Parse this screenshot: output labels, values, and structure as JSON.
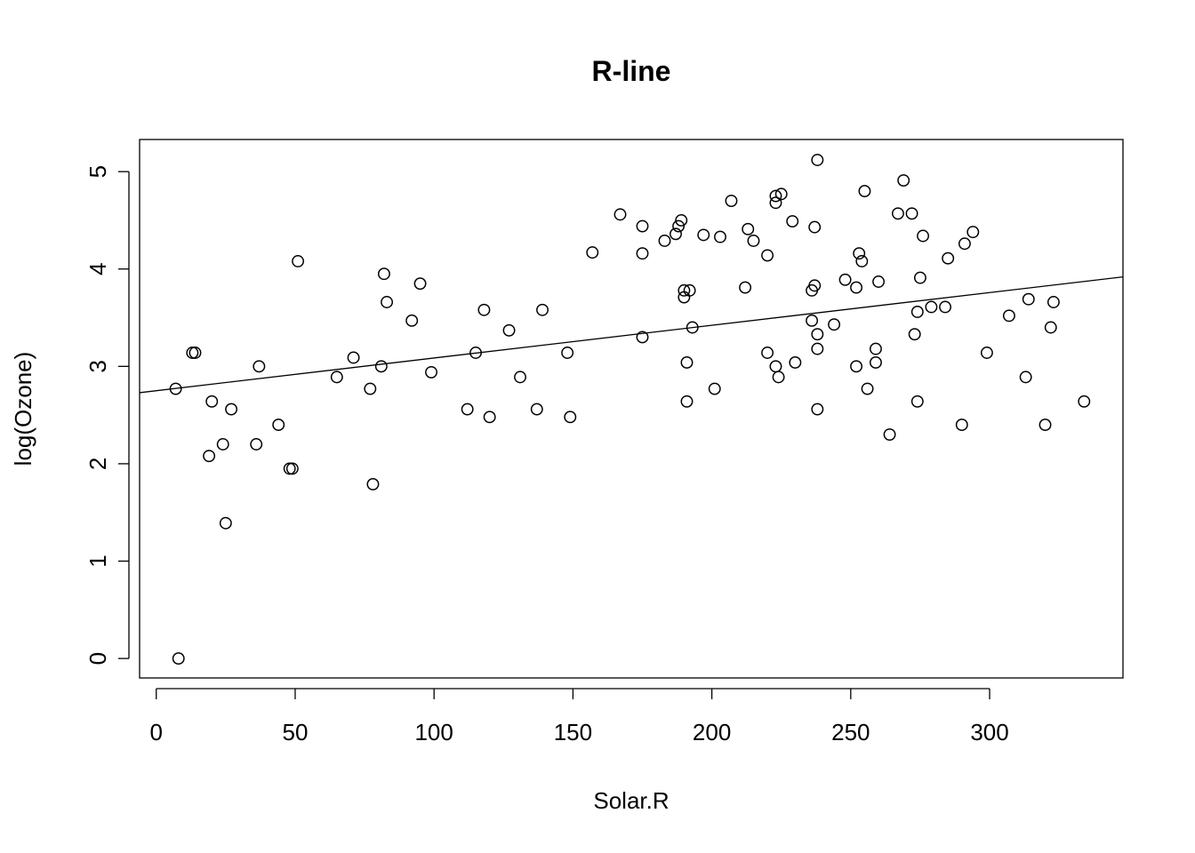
{
  "chart_data": {
    "type": "scatter",
    "title": "R-line",
    "xlabel": "Solar.R",
    "ylabel": "log(Ozone)",
    "xlim": [
      -6,
      348
    ],
    "ylim": [
      -0.2,
      5.33
    ],
    "x_ticks": [
      0,
      50,
      100,
      150,
      200,
      250,
      300
    ],
    "y_ticks": [
      0,
      1,
      2,
      3,
      4,
      5
    ],
    "x_tick_labels": [
      "0",
      "50",
      "100",
      "150",
      "200",
      "250",
      "300"
    ],
    "y_tick_labels": [
      "0",
      "1",
      "2",
      "3",
      "4",
      "5"
    ],
    "grid": false,
    "legend": "none",
    "line": {
      "intercept": 2.75,
      "slope": 0.00336
    },
    "points": [
      [
        7,
        2.77
      ],
      [
        8,
        0.0
      ],
      [
        13,
        3.14
      ],
      [
        14,
        3.14
      ],
      [
        19,
        2.08
      ],
      [
        20,
        2.64
      ],
      [
        24,
        2.2
      ],
      [
        25,
        1.39
      ],
      [
        27,
        2.56
      ],
      [
        36,
        2.2
      ],
      [
        37,
        3.0
      ],
      [
        44,
        2.4
      ],
      [
        48,
        1.95
      ],
      [
        49,
        1.95
      ],
      [
        51,
        4.08
      ],
      [
        65,
        2.89
      ],
      [
        71,
        3.09
      ],
      [
        77,
        2.77
      ],
      [
        78,
        1.79
      ],
      [
        81,
        3.0
      ],
      [
        82,
        3.95
      ],
      [
        83,
        3.66
      ],
      [
        92,
        3.47
      ],
      [
        95,
        3.85
      ],
      [
        99,
        2.94
      ],
      [
        112,
        2.56
      ],
      [
        115,
        3.14
      ],
      [
        118,
        3.58
      ],
      [
        120,
        2.48
      ],
      [
        127,
        3.37
      ],
      [
        131,
        2.89
      ],
      [
        137,
        2.56
      ],
      [
        139,
        3.58
      ],
      [
        148,
        3.14
      ],
      [
        149,
        2.48
      ],
      [
        157,
        4.17
      ],
      [
        167,
        4.56
      ],
      [
        175,
        4.44
      ],
      [
        175,
        4.16
      ],
      [
        175,
        3.3
      ],
      [
        183,
        4.29
      ],
      [
        187,
        4.36
      ],
      [
        188,
        4.44
      ],
      [
        189,
        4.5
      ],
      [
        190,
        3.78
      ],
      [
        190,
        3.71
      ],
      [
        191,
        3.04
      ],
      [
        191,
        2.64
      ],
      [
        192,
        3.78
      ],
      [
        193,
        3.4
      ],
      [
        197,
        4.35
      ],
      [
        201,
        2.77
      ],
      [
        203,
        4.33
      ],
      [
        207,
        4.7
      ],
      [
        212,
        3.81
      ],
      [
        213,
        4.41
      ],
      [
        215,
        4.29
      ],
      [
        220,
        4.14
      ],
      [
        220,
        3.14
      ],
      [
        223,
        4.75
      ],
      [
        223,
        4.68
      ],
      [
        223,
        3.0
      ],
      [
        224,
        2.89
      ],
      [
        225,
        4.77
      ],
      [
        229,
        4.49
      ],
      [
        230,
        3.04
      ],
      [
        236,
        3.78
      ],
      [
        236,
        3.47
      ],
      [
        237,
        4.43
      ],
      [
        237,
        3.83
      ],
      [
        238,
        5.12
      ],
      [
        238,
        3.33
      ],
      [
        238,
        3.18
      ],
      [
        238,
        2.56
      ],
      [
        244,
        3.43
      ],
      [
        248,
        3.89
      ],
      [
        252,
        3.81
      ],
      [
        252,
        3.0
      ],
      [
        253,
        4.16
      ],
      [
        254,
        4.08
      ],
      [
        255,
        4.8
      ],
      [
        256,
        2.77
      ],
      [
        259,
        3.18
      ],
      [
        259,
        3.04
      ],
      [
        260,
        3.87
      ],
      [
        264,
        2.3
      ],
      [
        267,
        4.57
      ],
      [
        269,
        4.91
      ],
      [
        272,
        4.57
      ],
      [
        273,
        3.33
      ],
      [
        274,
        3.56
      ],
      [
        274,
        2.64
      ],
      [
        275,
        3.91
      ],
      [
        276,
        4.34
      ],
      [
        279,
        3.61
      ],
      [
        284,
        3.61
      ],
      [
        285,
        4.11
      ],
      [
        290,
        2.4
      ],
      [
        291,
        4.26
      ],
      [
        294,
        4.38
      ],
      [
        299,
        3.14
      ],
      [
        307,
        3.52
      ],
      [
        313,
        2.89
      ],
      [
        314,
        3.69
      ],
      [
        320,
        2.4
      ],
      [
        322,
        3.4
      ],
      [
        323,
        3.66
      ],
      [
        334,
        2.64
      ]
    ]
  }
}
